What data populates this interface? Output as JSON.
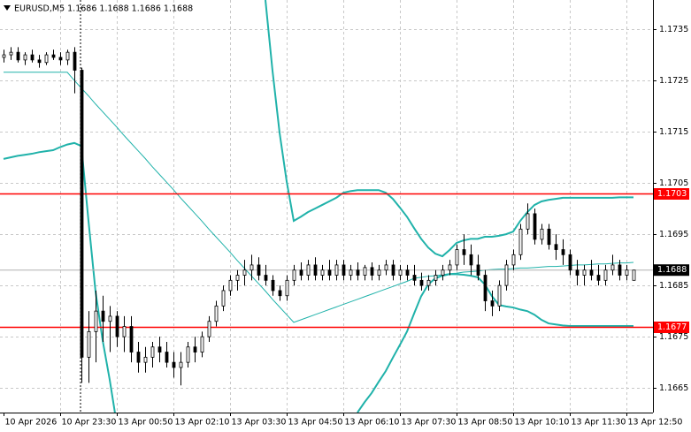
{
  "chart_data": {
    "type": "candlestick",
    "title": "EURUSD,M5 1.1686 1.1688 1.1686 1.1688",
    "categories": [
      "10 Apr 2026",
      null,
      null,
      null,
      null,
      null,
      null,
      null,
      "10 Apr 23:30",
      null,
      null,
      null,
      null,
      null,
      null,
      null,
      "13 Apr 00:50",
      null,
      null,
      null,
      null,
      null,
      null,
      null,
      "13 Apr 02:10",
      null,
      null,
      null,
      null,
      null,
      null,
      null,
      "13 Apr 03:30",
      null,
      null,
      null,
      null,
      null,
      null,
      null,
      "13 Apr 04:50",
      null,
      null,
      null,
      null,
      null,
      null,
      null,
      "13 Apr 06:10",
      null,
      null,
      null,
      null,
      null,
      null,
      null,
      "13 Apr 07:30",
      null,
      null,
      null,
      null,
      null,
      null,
      null,
      "13 Apr 08:50",
      null,
      null,
      null,
      null,
      null,
      null,
      null,
      "13 Apr 10:10",
      null,
      null,
      null,
      null,
      null,
      null,
      null,
      "13 Apr 11:30",
      null,
      null,
      null,
      null,
      null,
      null,
      null,
      "13 Apr 12:50",
      null
    ],
    "open": [
      1.17295,
      1.173,
      1.17305,
      1.1729,
      1.173,
      1.1729,
      1.17285,
      1.173,
      1.17295,
      1.1729,
      1.17305,
      1.1727,
      1.1671,
      1.1676,
      1.168,
      1.1678,
      1.1679,
      1.1675,
      1.1677,
      1.1672,
      1.167,
      1.1671,
      1.1673,
      1.1672,
      1.167,
      1.1669,
      1.167,
      1.1673,
      1.1672,
      1.1675,
      1.1678,
      1.1681,
      1.1684,
      1.1686,
      1.1687,
      1.1688,
      1.1689,
      1.1687,
      1.1686,
      1.1684,
      1.1683,
      1.1686,
      1.1688,
      1.1687,
      1.1689,
      1.1687,
      1.1688,
      1.1687,
      1.1689,
      1.1687,
      1.1688,
      1.1687,
      1.16885,
      1.1687,
      1.1688,
      1.1689,
      1.1687,
      1.1688,
      1.1687,
      1.1686,
      1.1685,
      1.1686,
      1.1687,
      1.1688,
      1.1689,
      1.1692,
      1.1691,
      1.1689,
      1.1687,
      1.1682,
      1.1681,
      1.1685,
      1.1689,
      1.1691,
      1.1696,
      1.1699,
      1.1694,
      1.1696,
      1.1693,
      1.1692,
      1.1691,
      1.1688,
      1.1687,
      1.1688,
      1.1687,
      1.1686,
      1.1688,
      1.1689,
      1.1687,
      1.1686
    ],
    "high": [
      1.1731,
      1.17315,
      1.17315,
      1.17305,
      1.1731,
      1.173,
      1.17305,
      1.1731,
      1.17305,
      1.1731,
      1.17315,
      1.17275,
      1.168,
      1.1684,
      1.1683,
      1.1681,
      1.168,
      1.1679,
      1.1679,
      1.1674,
      1.1673,
      1.1674,
      1.1675,
      1.1674,
      1.1672,
      1.1672,
      1.1674,
      1.1675,
      1.1676,
      1.1679,
      1.1682,
      1.1685,
      1.1687,
      1.1688,
      1.169,
      1.1691,
      1.16905,
      1.1689,
      1.1687,
      1.1685,
      1.1687,
      1.1689,
      1.16895,
      1.169,
      1.16905,
      1.1689,
      1.169,
      1.169,
      1.169,
      1.1689,
      1.16895,
      1.1689,
      1.16895,
      1.1689,
      1.169,
      1.169,
      1.1689,
      1.1689,
      1.1689,
      1.16875,
      1.1687,
      1.1688,
      1.1689,
      1.169,
      1.1693,
      1.1695,
      1.1693,
      1.1691,
      1.1688,
      1.1684,
      1.1686,
      1.169,
      1.1692,
      1.1697,
      1.1701,
      1.17,
      1.1697,
      1.1697,
      1.1695,
      1.1694,
      1.1692,
      1.169,
      1.1689,
      1.169,
      1.1689,
      1.1689,
      1.1691,
      1.169,
      1.1689,
      1.1688
    ],
    "low": [
      1.17285,
      1.1729,
      1.17285,
      1.1728,
      1.17285,
      1.17275,
      1.1728,
      1.1729,
      1.1728,
      1.1728,
      1.17225,
      1.1666,
      1.1666,
      1.167,
      1.1674,
      1.1672,
      1.1673,
      1.1672,
      1.167,
      1.1668,
      1.1668,
      1.1669,
      1.167,
      1.1669,
      1.1667,
      1.16655,
      1.1669,
      1.167,
      1.1671,
      1.1674,
      1.1677,
      1.168,
      1.1683,
      1.1684,
      1.1685,
      1.1686,
      1.1686,
      1.1685,
      1.1683,
      1.1682,
      1.1682,
      1.1685,
      1.1686,
      1.1686,
      1.1686,
      1.1686,
      1.1686,
      1.1686,
      1.1686,
      1.1686,
      1.1686,
      1.1686,
      1.1686,
      1.1686,
      1.1687,
      1.1686,
      1.1686,
      1.1686,
      1.1685,
      1.1684,
      1.1684,
      1.1685,
      1.1686,
      1.1687,
      1.1688,
      1.1689,
      1.1687,
      1.1686,
      1.168,
      1.1679,
      1.168,
      1.1684,
      1.1688,
      1.169,
      1.1695,
      1.1693,
      1.1693,
      1.1692,
      1.169,
      1.1689,
      1.1687,
      1.1685,
      1.1685,
      1.1686,
      1.1685,
      1.1685,
      1.1687,
      1.1686,
      1.1686,
      1.1686
    ],
    "close": [
      1.173,
      1.17305,
      1.1729,
      1.173,
      1.1729,
      1.17285,
      1.173,
      1.17295,
      1.1729,
      1.17305,
      1.1727,
      1.1671,
      1.1676,
      1.168,
      1.1678,
      1.1679,
      1.1675,
      1.1677,
      1.1672,
      1.167,
      1.1671,
      1.1673,
      1.1672,
      1.167,
      1.1669,
      1.167,
      1.1673,
      1.1672,
      1.1675,
      1.1678,
      1.1681,
      1.1684,
      1.1686,
      1.1687,
      1.1688,
      1.1689,
      1.1687,
      1.1686,
      1.1684,
      1.1683,
      1.1686,
      1.1688,
      1.1687,
      1.1689,
      1.1687,
      1.1688,
      1.1687,
      1.1689,
      1.1687,
      1.1688,
      1.1687,
      1.16885,
      1.1687,
      1.1688,
      1.1689,
      1.1687,
      1.1688,
      1.1687,
      1.1686,
      1.1685,
      1.1686,
      1.1687,
      1.1688,
      1.1689,
      1.1692,
      1.1691,
      1.1689,
      1.1687,
      1.1682,
      1.1681,
      1.1685,
      1.1689,
      1.1691,
      1.1696,
      1.1699,
      1.1694,
      1.1696,
      1.1693,
      1.1692,
      1.1691,
      1.1688,
      1.1687,
      1.1688,
      1.1687,
      1.1686,
      1.1688,
      1.1689,
      1.1687,
      1.1688,
      1.1688
    ],
    "up_color": "#ffffff",
    "down_color": "#000000",
    "series": [
      {
        "color": "#20b2aa",
        "values": [
          null,
          null,
          null,
          null,
          null,
          null,
          null,
          null,
          null,
          null,
          null,
          null,
          null,
          null,
          null,
          null,
          null,
          null,
          null,
          null,
          null,
          null,
          null,
          null,
          null,
          null,
          null,
          null,
          null,
          null,
          null,
          null,
          null,
          null,
          null,
          null,
          null,
          1.17407,
          1.17269,
          1.17148,
          1.17053,
          1.16976,
          1.16984,
          1.16993,
          1.17,
          1.17007,
          1.17014,
          1.17021,
          1.17031,
          1.17034,
          1.17036,
          1.17036,
          1.17036,
          1.17036,
          1.17031,
          1.17019,
          1.17002,
          1.16984,
          1.16962,
          1.16941,
          1.16924,
          1.16912,
          1.16907,
          1.16919,
          1.16933,
          1.16938,
          1.16941,
          1.16941,
          1.16945,
          1.16945,
          1.16947,
          1.1695,
          1.16955,
          1.16976,
          1.16993,
          1.17007,
          1.17014,
          1.17017,
          1.17019,
          1.17021,
          1.17021,
          1.17021,
          1.17021,
          1.17021,
          1.17021,
          1.17021,
          1.17021,
          1.17022,
          1.17022,
          1.17022
        ]
      },
      {
        "color": "#20b2aa",
        "values": [
          1.17266,
          1.17266,
          1.17266,
          1.17266,
          1.17266,
          1.17266,
          1.17266,
          1.17266,
          1.17266,
          1.17266,
          1.1725,
          1.17235,
          1.1722,
          1.17204,
          1.17189,
          1.17174,
          1.17159,
          1.17143,
          1.17128,
          1.17113,
          1.17098,
          1.17082,
          1.17067,
          1.17052,
          1.17037,
          1.17021,
          1.17006,
          1.16991,
          1.16976,
          1.1696,
          1.16945,
          1.1693,
          1.16915,
          1.16899,
          1.16884,
          1.16869,
          1.16854,
          1.16839,
          1.16823,
          1.16808,
          1.16793,
          1.16778,
          1.16783,
          1.16788,
          1.16793,
          1.16798,
          1.16803,
          1.16808,
          1.16813,
          1.16818,
          1.16823,
          1.16828,
          1.16833,
          1.16838,
          1.16843,
          1.16848,
          1.16853,
          1.16858,
          1.16864,
          1.16866,
          1.16868,
          1.16869,
          1.16871,
          1.16873,
          1.16874,
          1.16876,
          1.16877,
          1.16878,
          1.1688,
          1.16881,
          1.16882,
          1.16882,
          1.16883,
          1.16884,
          1.16884,
          1.16885,
          1.16886,
          1.16887,
          1.16887,
          1.16888,
          1.16889,
          1.1689,
          1.1689,
          1.16891,
          1.16892,
          1.16892,
          1.16893,
          1.16894,
          1.16894,
          1.16895
        ]
      },
      {
        "color": "#20b2aa",
        "values": [
          1.17097,
          1.171,
          1.17103,
          1.17105,
          1.17107,
          1.1711,
          1.17112,
          1.17114,
          1.1712,
          1.17125,
          1.17128,
          1.17122,
          1.16976,
          1.16838,
          1.16743,
          1.16666,
          1.16579,
          null,
          null,
          null,
          null,
          null,
          null,
          null,
          null,
          null,
          null,
          null,
          null,
          null,
          null,
          null,
          null,
          null,
          null,
          null,
          null,
          null,
          null,
          null,
          null,
          null,
          null,
          null,
          null,
          null,
          null,
          null,
          null,
          null,
          1.16602,
          1.16622,
          1.1664,
          1.16662,
          1.16683,
          1.16709,
          1.16734,
          1.1676,
          1.16795,
          1.16829,
          1.16852,
          1.16864,
          1.16869,
          1.16872,
          1.16872,
          1.16871,
          1.16869,
          1.16866,
          1.16852,
          1.16829,
          1.16812,
          1.16809,
          1.16807,
          1.16803,
          1.168,
          1.16793,
          1.16783,
          1.16776,
          1.16774,
          1.16772,
          1.16771,
          1.16771,
          1.16771,
          1.16771,
          1.16771,
          1.16771,
          1.16771,
          1.16771,
          1.16771,
          1.16771
        ]
      }
    ],
    "levels": [
      {
        "value": 1.1703,
        "color": "#ff0000"
      },
      {
        "value": 1.1677,
        "color": "#ff0000"
      }
    ],
    "last_price": 1.1688,
    "ylim": [
      1.16602,
      1.17407
    ],
    "yticks": [
      1.1665,
      1.1675,
      1.1685,
      1.1695,
      1.1705,
      1.1715,
      1.1725,
      1.1735
    ],
    "grid": true
  }
}
